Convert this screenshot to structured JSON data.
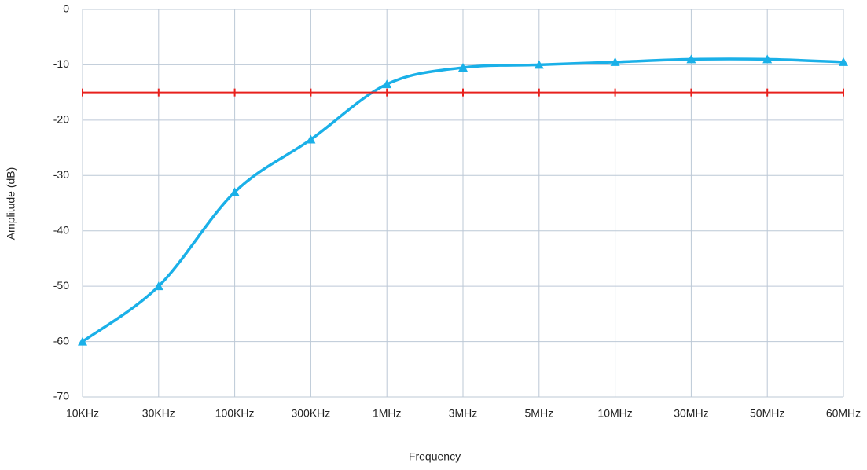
{
  "chart_data": {
    "type": "line",
    "x_label": "Frequency",
    "y_label": "Amplitude (dB)",
    "categories": [
      "10KHz",
      "30KHz",
      "100KHz",
      "300KHz",
      "1MHz",
      "3MHz",
      "5MHz",
      "10MHz",
      "30MHz",
      "50MHz",
      "60MHz"
    ],
    "series": [
      {
        "color": "#1ab0e8",
        "smooth": true,
        "marker": "triangle",
        "values": [
          -60,
          -50,
          -33,
          -23.5,
          -13.5,
          -10.5,
          -10,
          -9.5,
          -9,
          -9,
          -9.5
        ]
      },
      {
        "color": "#e8201c",
        "smooth": false,
        "marker": "dash",
        "values": [
          -15,
          -15,
          -15,
          -15,
          -15,
          -15,
          -15,
          -15,
          -15,
          -15,
          -15
        ]
      }
    ],
    "ylim": [
      -70,
      0
    ],
    "yticks": [
      -70,
      -60,
      -50,
      -40,
      -30,
      -20,
      -10,
      0
    ],
    "grid": true
  }
}
